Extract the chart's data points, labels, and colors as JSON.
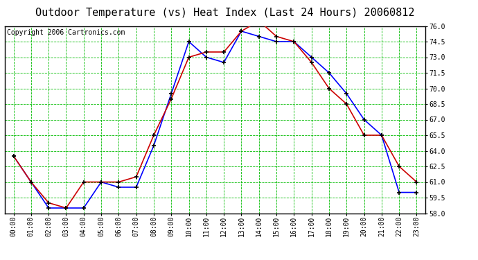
{
  "title": "Outdoor Temperature (vs) Heat Index (Last 24 Hours) 20060812",
  "copyright": "Copyright 2006 Cartronics.com",
  "hours": [
    "00:00",
    "01:00",
    "02:00",
    "03:00",
    "04:00",
    "05:00",
    "06:00",
    "07:00",
    "08:00",
    "09:00",
    "10:00",
    "11:00",
    "12:00",
    "13:00",
    "14:00",
    "15:00",
    "16:00",
    "17:00",
    "18:00",
    "19:00",
    "20:00",
    "21:00",
    "22:00",
    "23:00"
  ],
  "temp_blue": [
    63.5,
    61.0,
    58.5,
    58.5,
    58.5,
    61.0,
    60.5,
    60.5,
    64.5,
    69.5,
    74.5,
    73.0,
    72.5,
    75.5,
    75.0,
    74.5,
    74.5,
    73.0,
    71.5,
    69.5,
    67.0,
    65.5,
    60.0,
    60.0
  ],
  "heat_red": [
    63.5,
    61.0,
    59.0,
    58.5,
    61.0,
    61.0,
    61.0,
    61.5,
    65.5,
    69.0,
    73.0,
    73.5,
    73.5,
    75.5,
    76.5,
    75.0,
    74.5,
    72.5,
    70.0,
    68.5,
    65.5,
    65.5,
    62.5,
    61.0
  ],
  "ylim_min": 58.0,
  "ylim_max": 76.0,
  "yticks": [
    58.0,
    59.5,
    61.0,
    62.5,
    64.0,
    65.5,
    67.0,
    68.5,
    70.0,
    71.5,
    73.0,
    74.5,
    76.0
  ],
  "bg_color": "#ffffff",
  "grid_color": "#00bb00",
  "line_blue": "#0000ff",
  "line_red": "#cc0000",
  "marker_color": "#000000",
  "title_fontsize": 11,
  "copyright_fontsize": 7,
  "tick_fontsize": 7,
  "line_width": 1.2,
  "marker_size": 5
}
